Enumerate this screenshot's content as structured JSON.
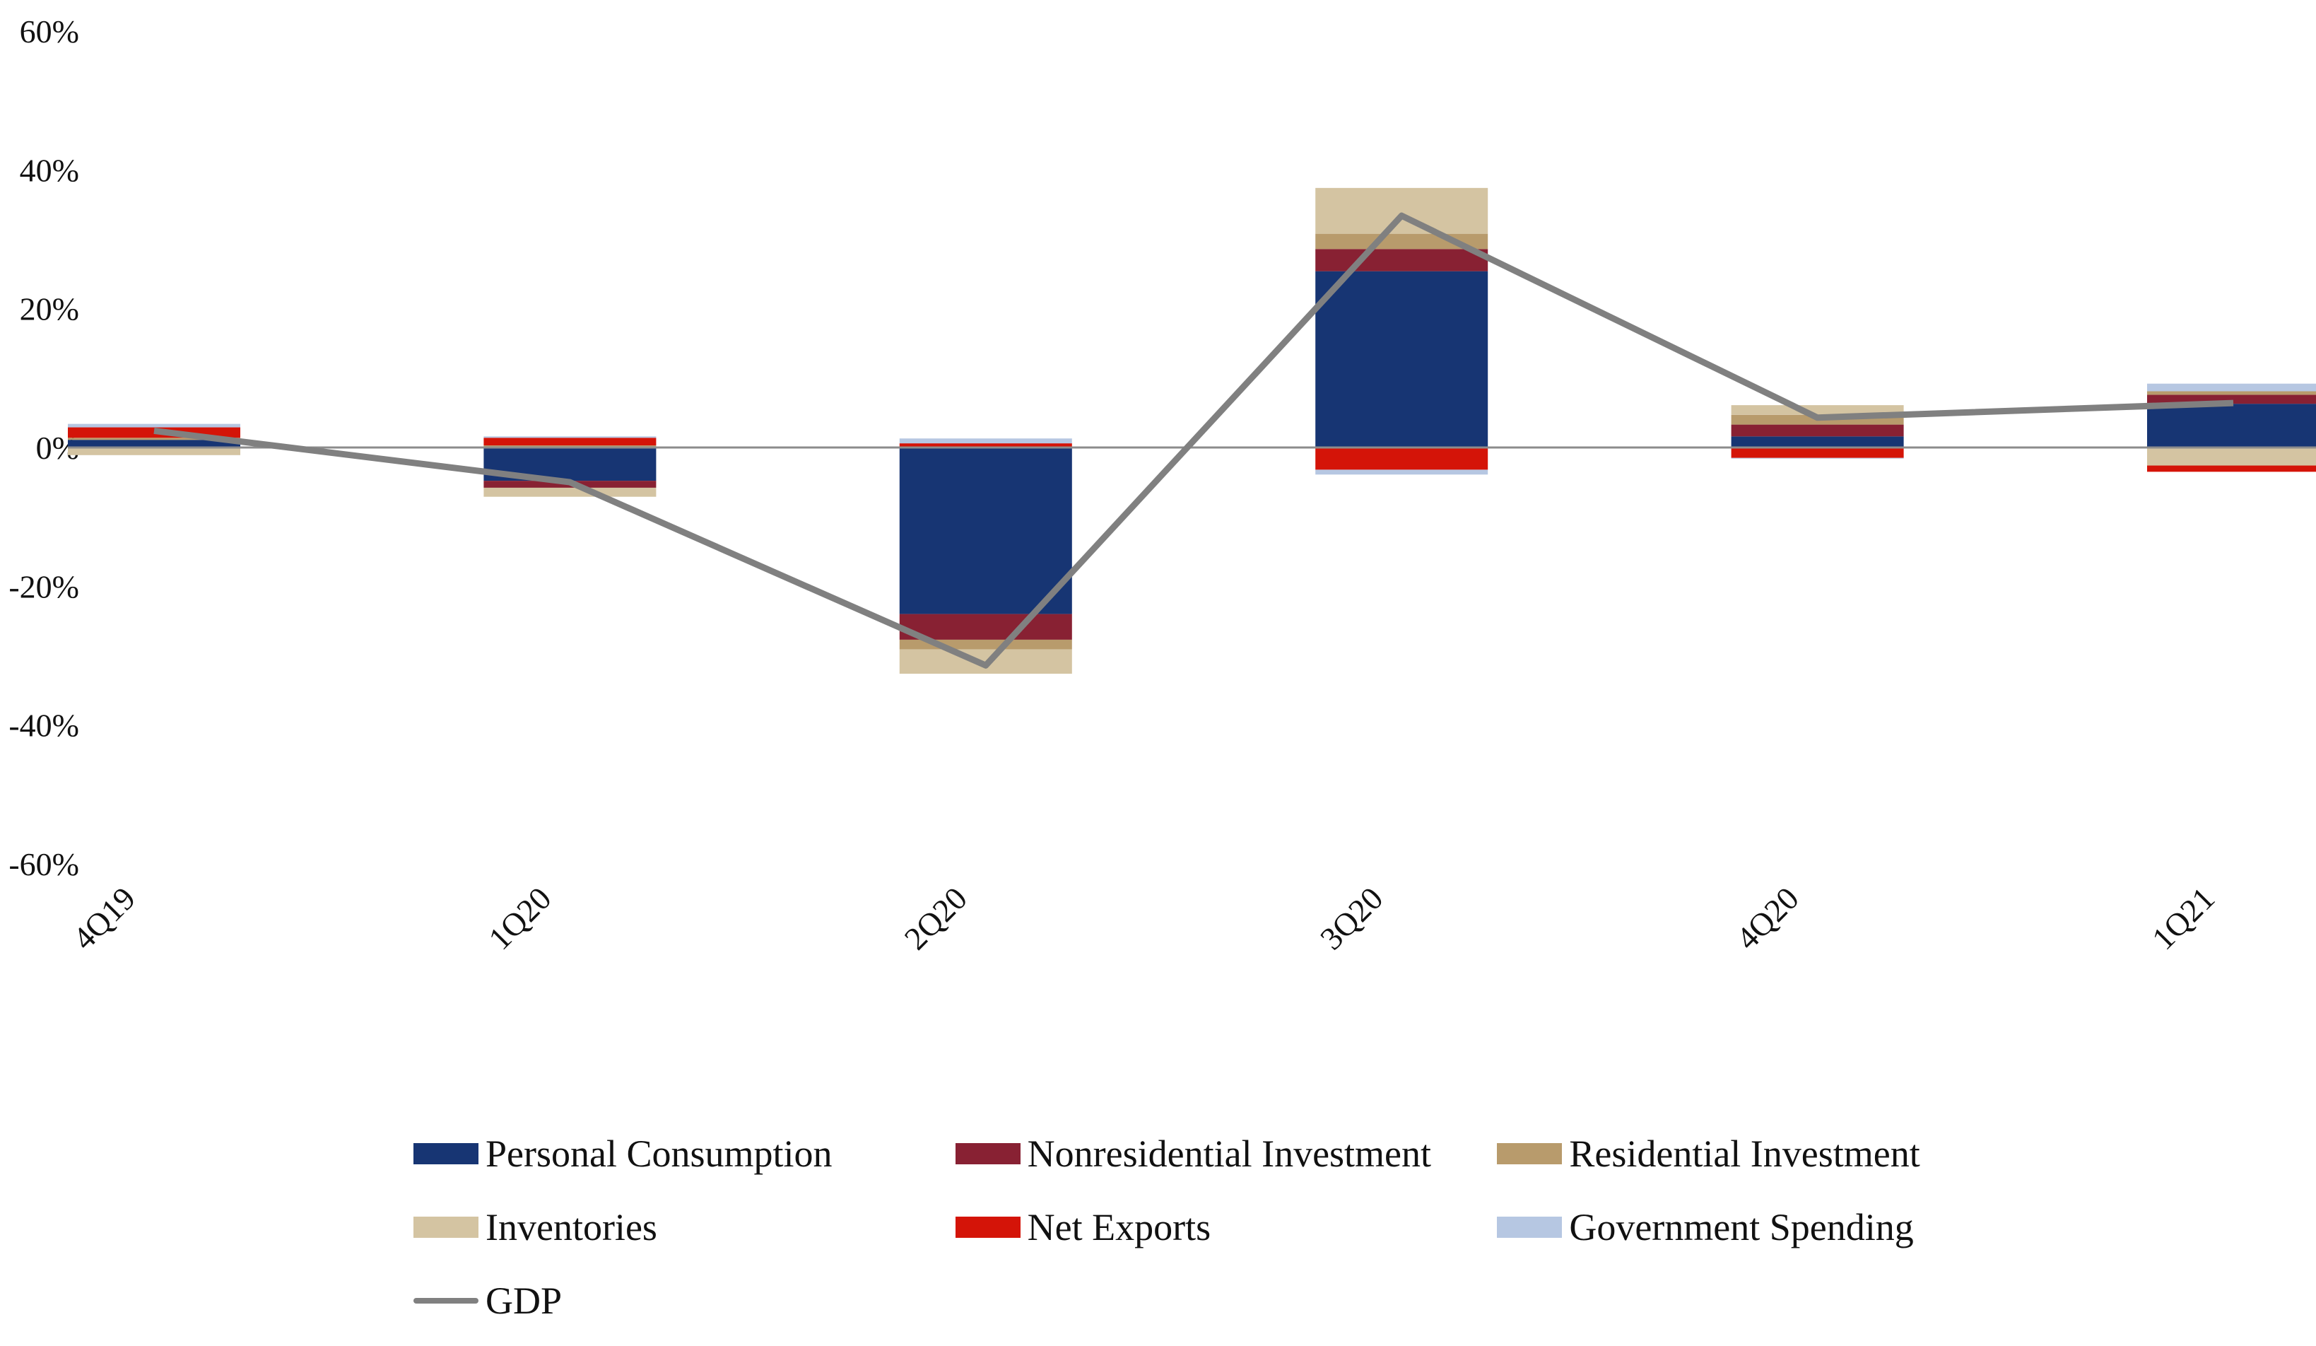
{
  "chart_data": {
    "type": "bar",
    "stacked": true,
    "title": "",
    "xlabel": "",
    "ylabel": "",
    "ylim": [
      -60,
      60
    ],
    "yticks": [
      60,
      40,
      20,
      0,
      -20,
      -40,
      -60
    ],
    "ytick_labels": [
      "60%",
      "40%",
      "20%",
      "0%",
      "-20%",
      "-40%",
      "-60%"
    ],
    "y_unit": "%",
    "grid": false,
    "zero_line": true,
    "categories": [
      "4Q19",
      "1Q20",
      "2Q20",
      "3Q20",
      "4Q20",
      "1Q21"
    ],
    "series": [
      {
        "name": "Personal Consumption",
        "color": "#173573",
        "values": [
          1.1,
          -4.8,
          -24.0,
          25.4,
          1.6,
          6.3
        ]
      },
      {
        "name": "Nonresidential Investment",
        "color": "#882133",
        "values": [
          -0.1,
          -1.0,
          -3.7,
          3.2,
          1.7,
          1.3
        ]
      },
      {
        "name": "Residential Investment",
        "color": "#b89b6c",
        "values": [
          0.3,
          0.3,
          -1.4,
          2.2,
          1.4,
          0.5
        ]
      },
      {
        "name": "Inventories",
        "color": "#d4c4a2",
        "values": [
          -1.0,
          -1.3,
          -3.5,
          6.6,
          1.4,
          -2.6
        ]
      },
      {
        "name": "Net Exports",
        "color": "#d41408",
        "values": [
          1.5,
          1.1,
          0.6,
          -3.2,
          -1.5,
          -0.9
        ]
      },
      {
        "name": "Government Spending",
        "color": "#b6c7e2",
        "values": [
          0.5,
          0.2,
          0.7,
          -0.7,
          -0.1,
          1.1
        ]
      }
    ],
    "line_series": [
      {
        "name": "GDP",
        "color": "#808080",
        "values": [
          2.4,
          -5.0,
          -31.4,
          33.4,
          4.3,
          6.4
        ]
      }
    ],
    "legend_position": "bottom"
  }
}
